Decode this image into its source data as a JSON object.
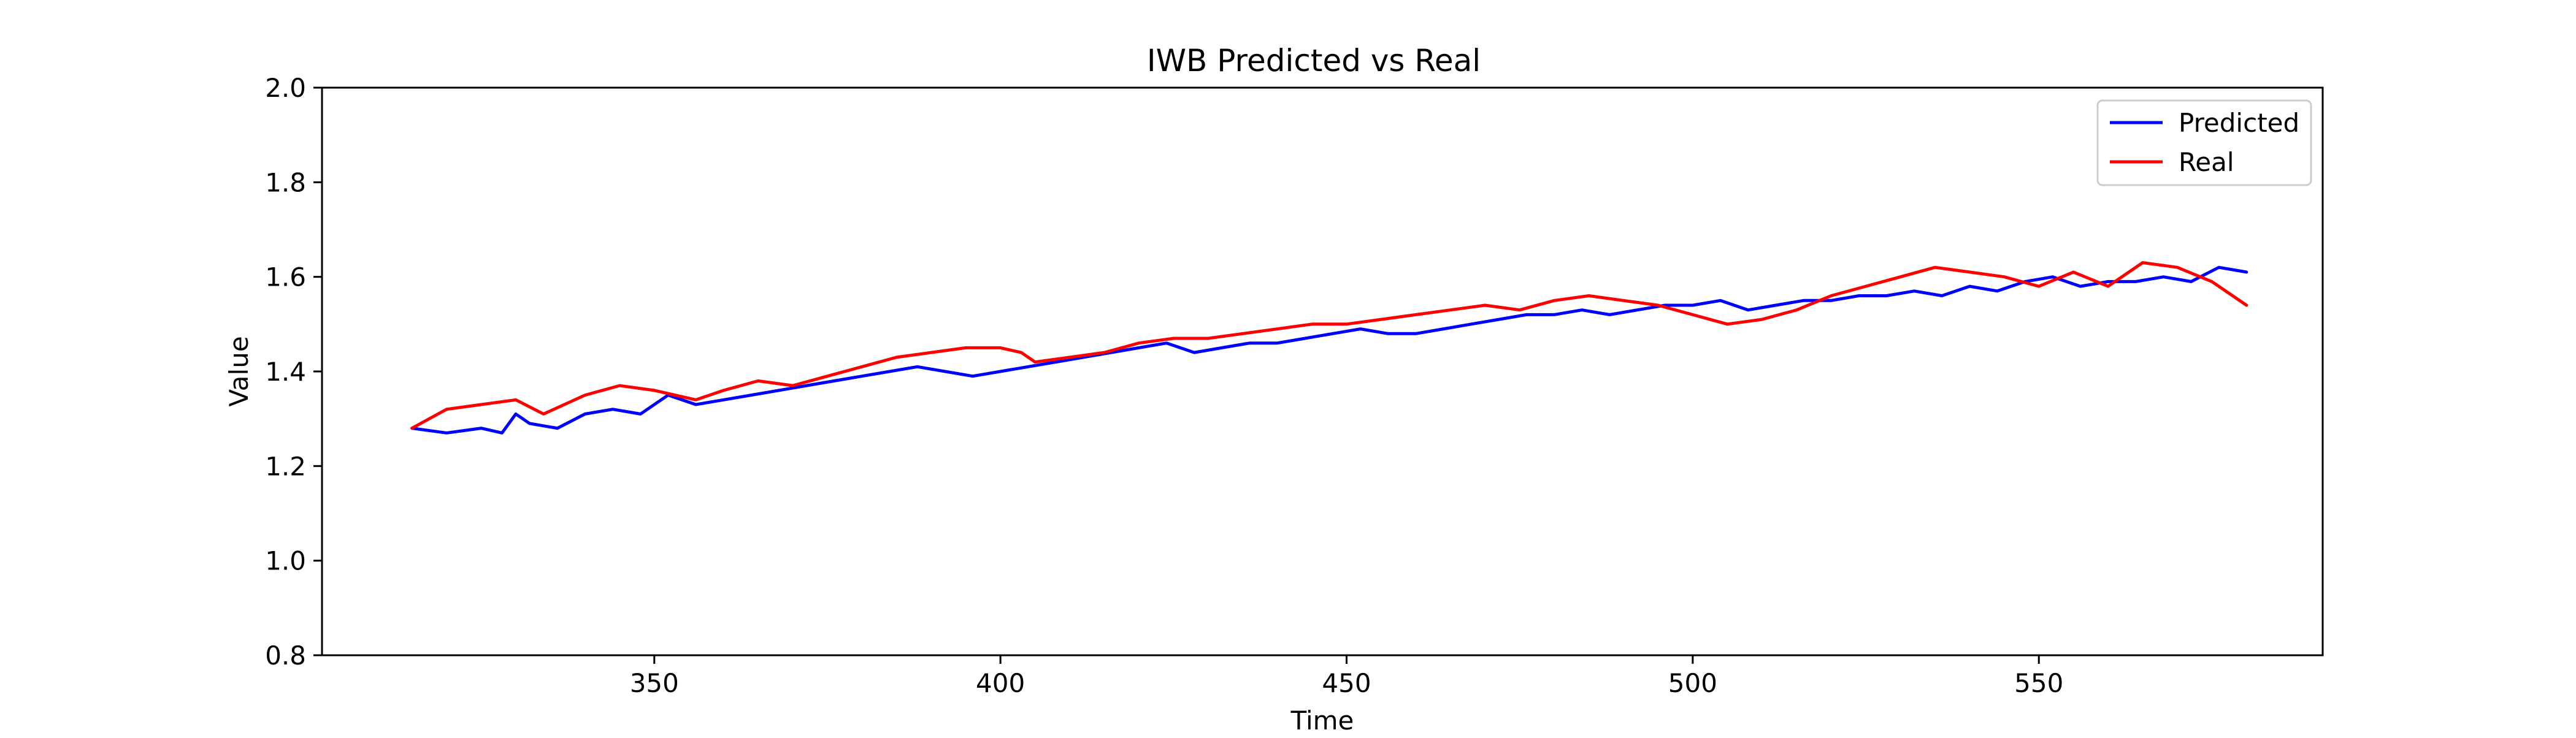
{
  "chart_data": {
    "type": "line",
    "title": "IWB Predicted vs Real",
    "xlabel": "Time",
    "ylabel": "Value",
    "xlim": [
      302,
      591
    ],
    "ylim": [
      0.8,
      2.0
    ],
    "xticks": [
      350,
      400,
      450,
      500,
      550
    ],
    "yticks": [
      0.8,
      1.0,
      1.2,
      1.4,
      1.6,
      1.8,
      2.0
    ],
    "grid": false,
    "legend": "top-right",
    "series": [
      {
        "name": "Predicted",
        "color": "#0000ff",
        "x": [
          315,
          320,
          325,
          328,
          330,
          332,
          336,
          340,
          344,
          348,
          352,
          356,
          360,
          364,
          368,
          372,
          376,
          380,
          384,
          388,
          392,
          396,
          400,
          404,
          408,
          412,
          416,
          420,
          424,
          428,
          432,
          436,
          440,
          444,
          448,
          452,
          456,
          460,
          464,
          468,
          472,
          476,
          480,
          484,
          488,
          492,
          496,
          500,
          504,
          508,
          512,
          516,
          520,
          524,
          528,
          532,
          536,
          540,
          544,
          548,
          552,
          556,
          560,
          564,
          568,
          572,
          576,
          580
        ],
        "values": [
          1.28,
          1.27,
          1.28,
          1.27,
          1.31,
          1.29,
          1.28,
          1.31,
          1.32,
          1.31,
          1.35,
          1.33,
          1.34,
          1.35,
          1.36,
          1.37,
          1.38,
          1.39,
          1.4,
          1.41,
          1.4,
          1.39,
          1.4,
          1.41,
          1.42,
          1.43,
          1.44,
          1.45,
          1.46,
          1.44,
          1.45,
          1.46,
          1.46,
          1.47,
          1.48,
          1.49,
          1.48,
          1.48,
          1.49,
          1.5,
          1.51,
          1.52,
          1.52,
          1.53,
          1.52,
          1.53,
          1.54,
          1.54,
          1.55,
          1.53,
          1.54,
          1.55,
          1.55,
          1.56,
          1.56,
          1.57,
          1.56,
          1.58,
          1.57,
          1.59,
          1.6,
          1.58,
          1.59,
          1.59,
          1.6,
          1.59,
          1.62,
          1.61
        ]
      },
      {
        "name": "Real",
        "color": "#ff0000",
        "x": [
          315,
          320,
          325,
          330,
          334,
          337,
          340,
          345,
          350,
          353,
          356,
          360,
          365,
          370,
          375,
          380,
          385,
          390,
          395,
          400,
          403,
          405,
          410,
          415,
          420,
          425,
          430,
          435,
          440,
          445,
          450,
          455,
          460,
          465,
          470,
          475,
          480,
          485,
          490,
          495,
          500,
          505,
          510,
          515,
          520,
          525,
          530,
          535,
          540,
          545,
          550,
          555,
          560,
          565,
          570,
          575,
          580
        ],
        "values": [
          1.28,
          1.32,
          1.33,
          1.34,
          1.31,
          1.33,
          1.35,
          1.37,
          1.36,
          1.35,
          1.34,
          1.36,
          1.38,
          1.37,
          1.39,
          1.41,
          1.43,
          1.44,
          1.45,
          1.45,
          1.44,
          1.42,
          1.43,
          1.44,
          1.46,
          1.47,
          1.47,
          1.48,
          1.49,
          1.5,
          1.5,
          1.51,
          1.52,
          1.53,
          1.54,
          1.53,
          1.55,
          1.56,
          1.55,
          1.54,
          1.52,
          1.5,
          1.51,
          1.53,
          1.56,
          1.58,
          1.6,
          1.62,
          1.61,
          1.6,
          1.58,
          1.61,
          1.58,
          1.63,
          1.62,
          1.59,
          1.54
        ]
      }
    ]
  }
}
